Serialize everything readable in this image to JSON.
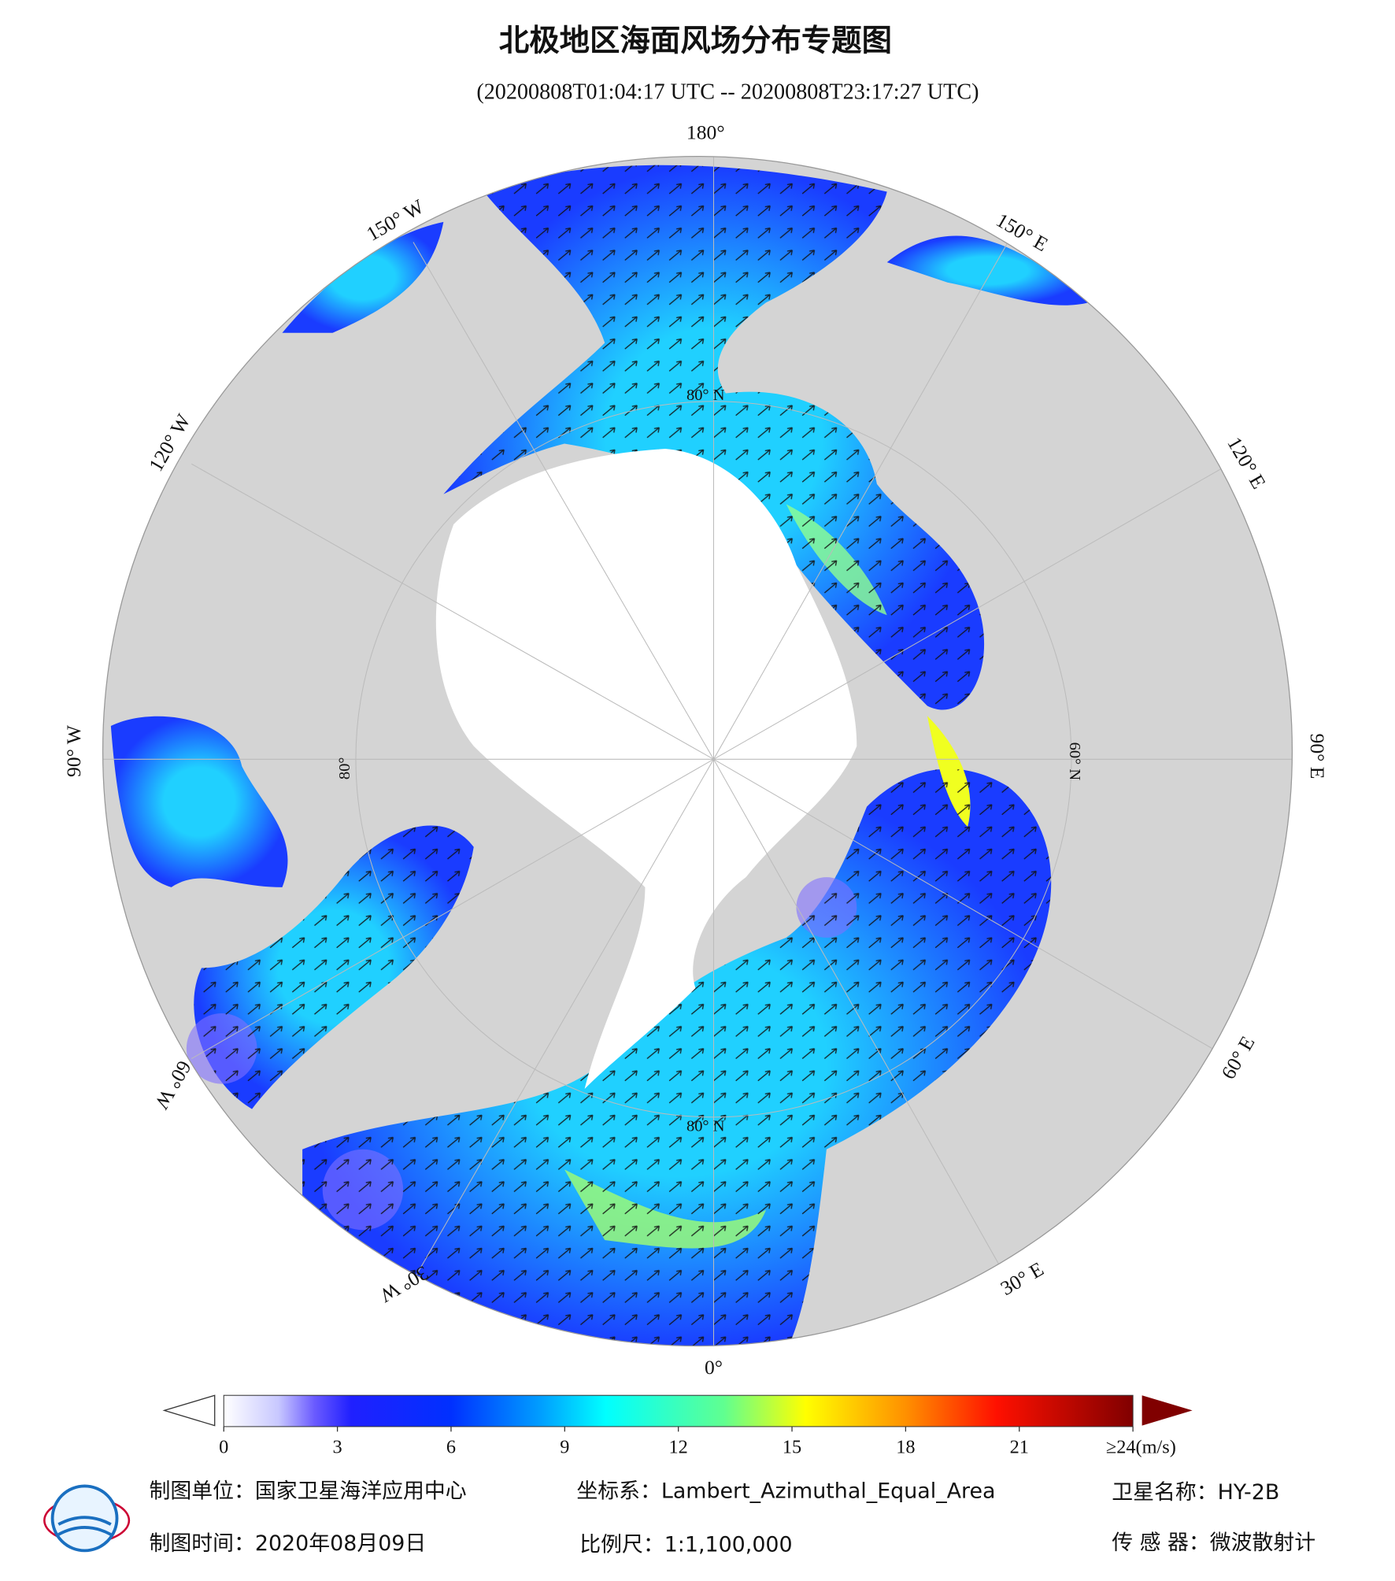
{
  "title": "北极地区海面风场分布专题图",
  "subtitle": "(20200808T01:04:17 UTC -- 20200808T23:17:27 UTC)",
  "map": {
    "longitude_labels": [
      "180°",
      "150° W",
      "120° W",
      "90° W",
      "60° W",
      "30° W",
      "0°",
      "30° E",
      "60° E",
      "90° E",
      "120° E",
      "150° E"
    ],
    "latitude_labels": [
      "60° N",
      "80° N",
      "80° N",
      "80°"
    ]
  },
  "colorbar": {
    "range": [
      0,
      24
    ],
    "ticks": [
      0,
      3,
      6,
      9,
      12,
      15,
      18,
      21,
      {
        "value": 24,
        "label": "≥24(m/s)"
      }
    ]
  },
  "footer": {
    "unit": "制图单位：国家卫星海洋应用中心",
    "coords": "坐标系：Lambert_Azimuthal_Equal_Area",
    "satellite": "卫星名称：HY-2B",
    "date": "制图时间：2020年08月09日",
    "scale": "比例尺：1:1,100,000",
    "sensor": "传 感 器：微波散射计"
  }
}
